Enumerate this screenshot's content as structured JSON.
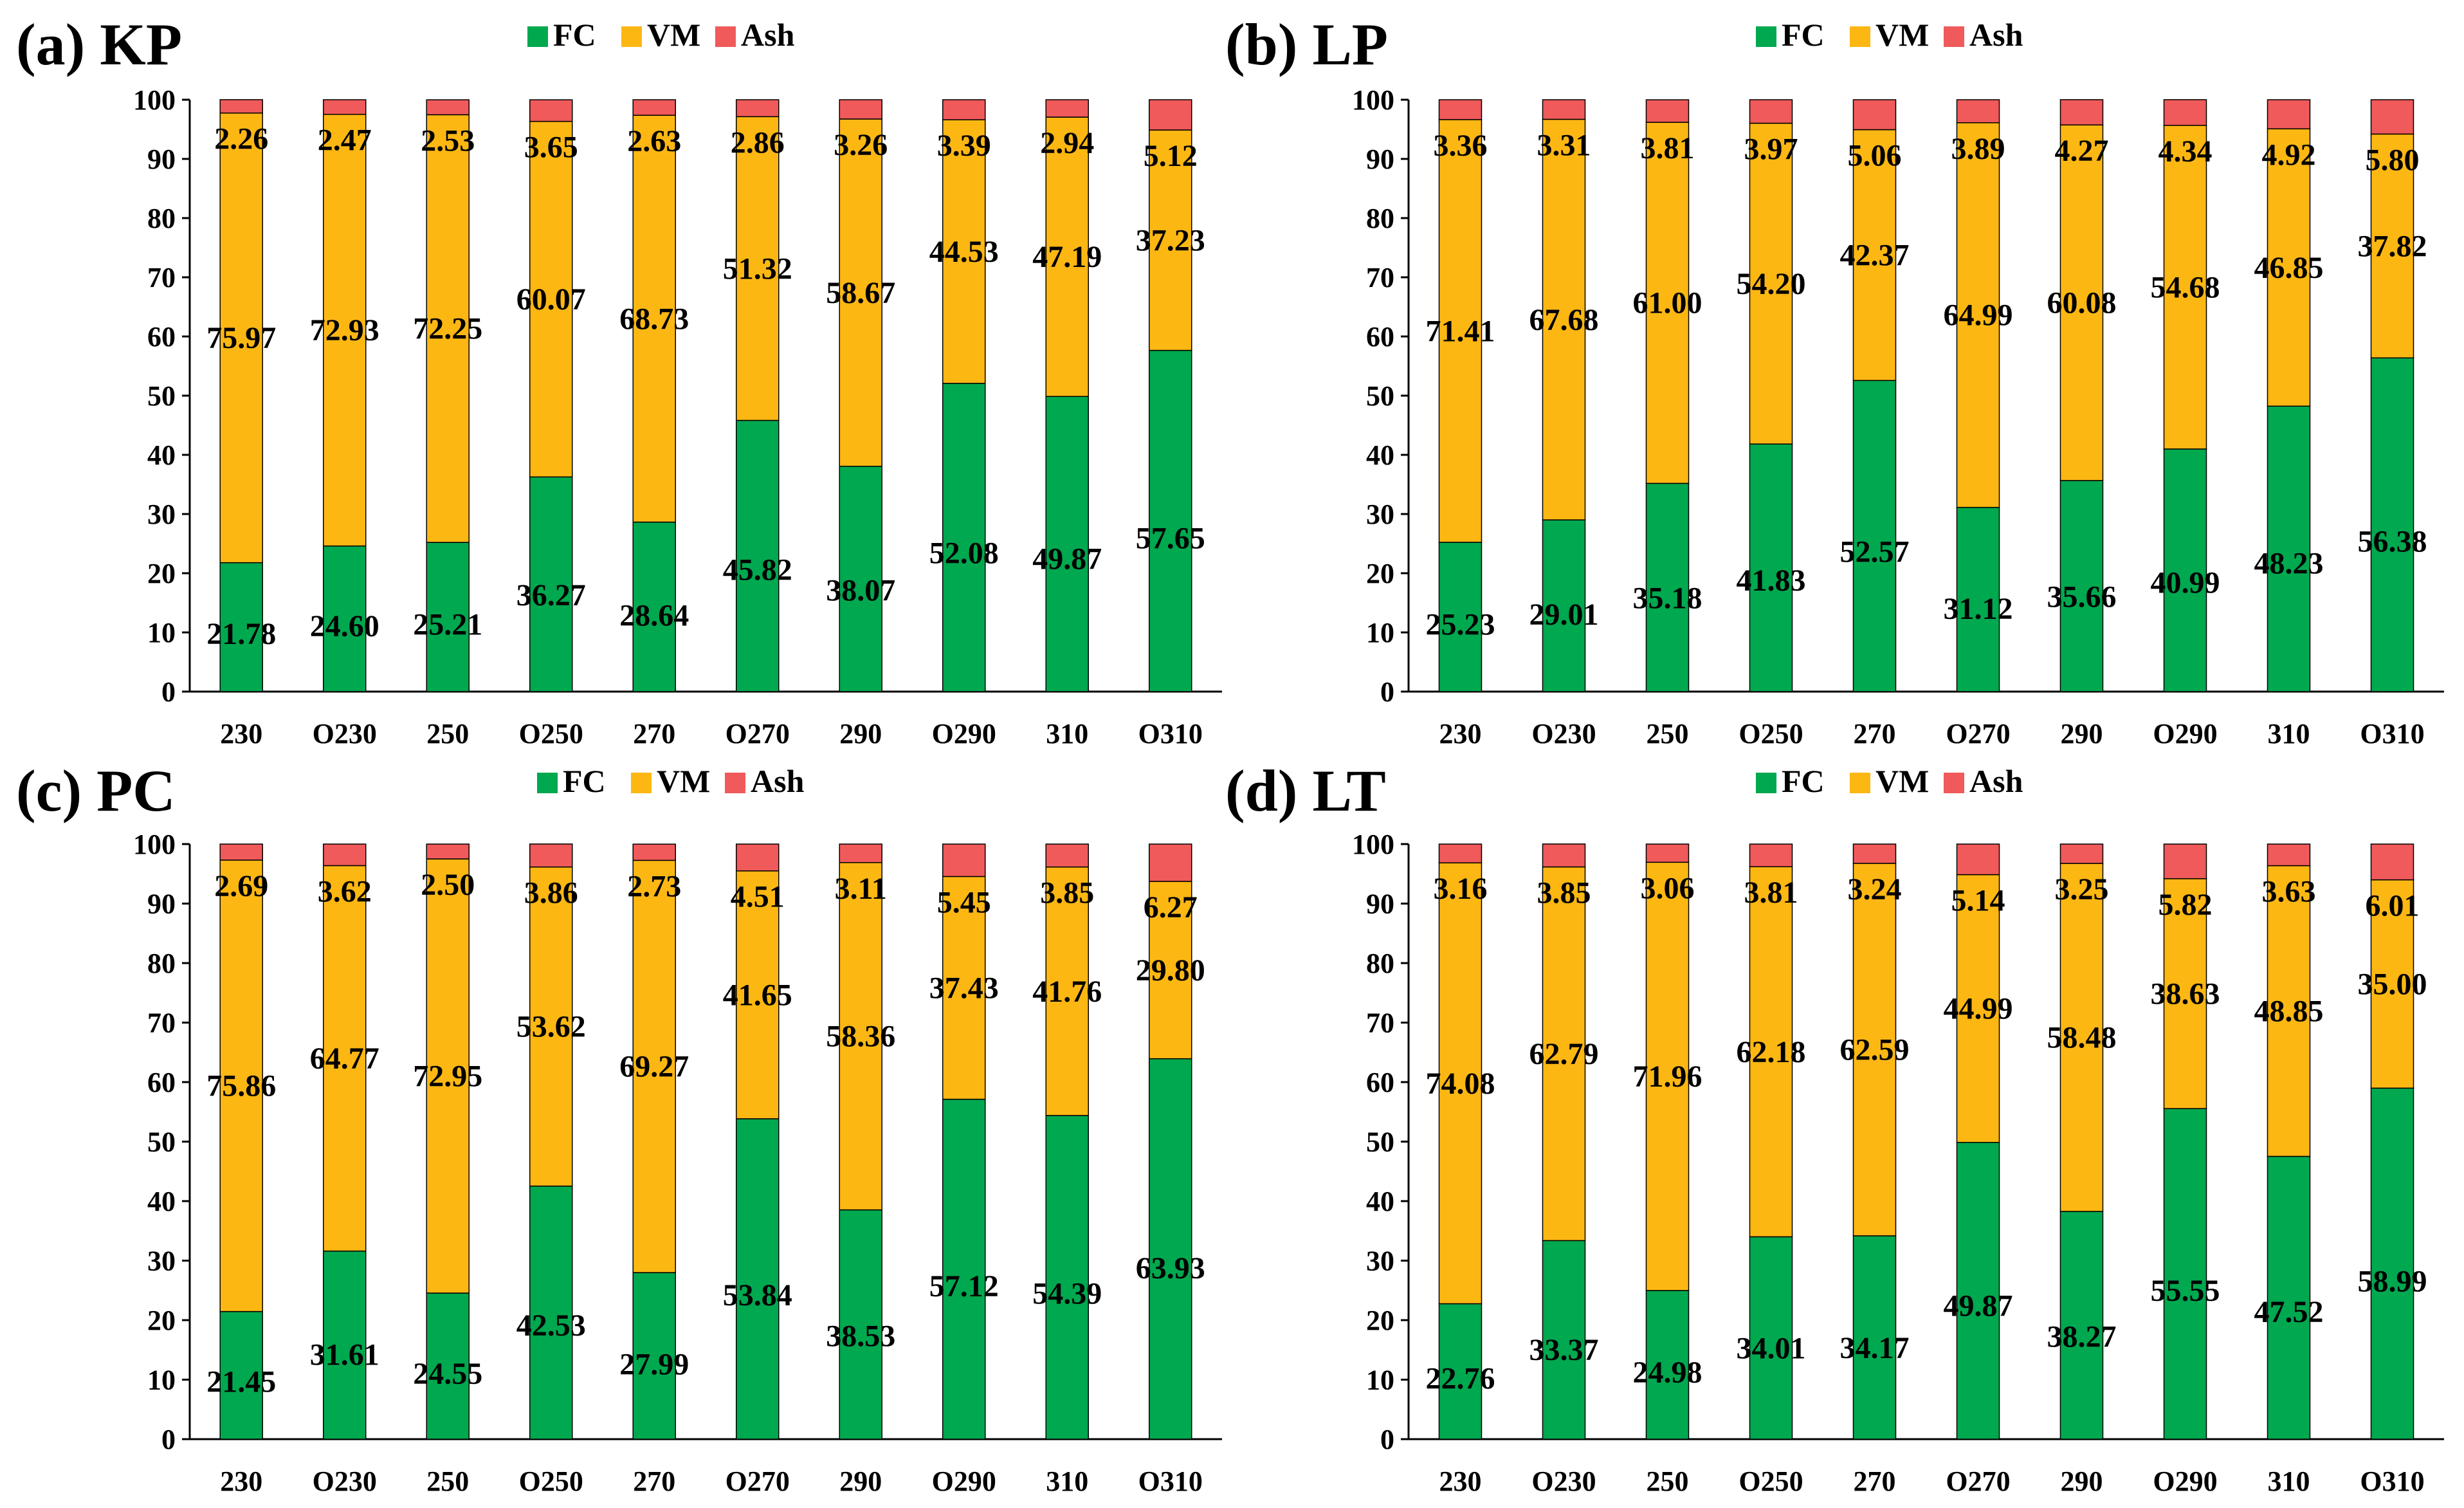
{
  "series_names": [
    "FC",
    "VM",
    "Ash"
  ],
  "colors": {
    "FC": "#00a84f",
    "VM": "#fdb713",
    "Ash": "#f05a5a"
  },
  "chart_data": [
    {
      "type": "bar",
      "stacked": true,
      "title": "(a) KP",
      "categories": [
        "230",
        "O230",
        "250",
        "O250",
        "270",
        "O270",
        "290",
        "O290",
        "310",
        "O310"
      ],
      "ylim": [
        0,
        100
      ],
      "yticks": [
        "0",
        "10",
        "20",
        "30",
        "40",
        "50",
        "60",
        "70",
        "80",
        "90",
        "100"
      ],
      "legend": "top-center",
      "series": [
        {
          "name": "FC",
          "values": [
            21.78,
            24.6,
            25.21,
            36.27,
            28.64,
            45.82,
            38.07,
            52.08,
            49.87,
            57.65
          ],
          "labels": [
            "21.78",
            "24.60",
            "25.21",
            "36.27",
            "28.64",
            "45.82",
            "38.07",
            "52.08",
            "49.87",
            "57.65"
          ]
        },
        {
          "name": "VM",
          "values": [
            75.97,
            72.93,
            72.25,
            60.07,
            68.73,
            51.32,
            58.67,
            44.53,
            47.19,
            37.23
          ],
          "labels": [
            "75.97",
            "72.93",
            "72.25",
            "60.07",
            "68.73",
            "51.32",
            "58.67",
            "44.53",
            "47.19",
            "37.23"
          ]
        },
        {
          "name": "Ash",
          "values": [
            2.26,
            2.47,
            2.53,
            3.65,
            2.63,
            2.86,
            3.26,
            3.39,
            2.94,
            5.12
          ],
          "labels": [
            "2.26",
            "2.47",
            "2.53",
            "3.65",
            "2.63",
            "2.86",
            "3.26",
            "3.39",
            "2.94",
            "5.12"
          ]
        }
      ]
    },
    {
      "type": "bar",
      "stacked": true,
      "title": "(b) LP",
      "categories": [
        "230",
        "O230",
        "250",
        "O250",
        "270",
        "O270",
        "290",
        "O290",
        "310",
        "O310"
      ],
      "ylim": [
        0,
        100
      ],
      "yticks": [
        "0",
        "10",
        "20",
        "30",
        "40",
        "50",
        "60",
        "70",
        "80",
        "90",
        "100"
      ],
      "legend": "top-center",
      "series": [
        {
          "name": "FC",
          "values": [
            25.23,
            29.01,
            35.18,
            41.83,
            52.57,
            31.12,
            35.66,
            40.99,
            48.23,
            56.38
          ],
          "labels": [
            "25.23",
            "29.01",
            "35.18",
            "41.83",
            "52.57",
            "31.12",
            "35.66",
            "40.99",
            "48.23",
            "56.38"
          ]
        },
        {
          "name": "VM",
          "values": [
            71.41,
            67.68,
            61.0,
            54.2,
            42.37,
            64.99,
            60.08,
            54.68,
            46.85,
            37.82
          ],
          "labels": [
            "71.41",
            "67.68",
            "61.00",
            "54.20",
            "42.37",
            "64.99",
            "60.08",
            "54.68",
            "46.85",
            "37.82"
          ]
        },
        {
          "name": "Ash",
          "values": [
            3.36,
            3.31,
            3.81,
            3.97,
            5.06,
            3.89,
            4.27,
            4.34,
            4.92,
            5.8
          ],
          "labels": [
            "3.36",
            "3.31",
            "3.81",
            "3.97",
            "5.06",
            "3.89",
            "4.27",
            "4.34",
            "4.92",
            "5.80"
          ]
        }
      ]
    },
    {
      "type": "bar",
      "stacked": true,
      "title": "(c) PC",
      "categories": [
        "230",
        "O230",
        "250",
        "O250",
        "270",
        "O270",
        "290",
        "O290",
        "310",
        "O310"
      ],
      "ylim": [
        0,
        100
      ],
      "yticks": [
        "0",
        "10",
        "20",
        "30",
        "40",
        "50",
        "60",
        "70",
        "80",
        "90",
        "100"
      ],
      "legend": "top-center",
      "series": [
        {
          "name": "FC",
          "values": [
            21.45,
            31.61,
            24.55,
            42.53,
            27.99,
            53.84,
            38.53,
            57.12,
            54.39,
            63.93
          ],
          "labels": [
            "21.45",
            "31.61",
            "24.55",
            "42.53",
            "27.99",
            "53.84",
            "38.53",
            "57.12",
            "54.39",
            "63.93"
          ]
        },
        {
          "name": "VM",
          "values": [
            75.86,
            64.77,
            72.95,
            53.62,
            69.27,
            41.65,
            58.36,
            37.43,
            41.76,
            29.8
          ],
          "labels": [
            "75.86",
            "64.77",
            "72.95",
            "53.62",
            "69.27",
            "41.65",
            "58.36",
            "37.43",
            "41.76",
            "29.80"
          ]
        },
        {
          "name": "Ash",
          "values": [
            2.69,
            3.62,
            2.5,
            3.86,
            2.73,
            4.51,
            3.11,
            5.45,
            3.85,
            6.27
          ],
          "labels": [
            "2.69",
            "3.62",
            "2.50",
            "3.86",
            "2.73",
            "4.51",
            "3.11",
            "5.45",
            "3.85",
            "6.27"
          ]
        }
      ]
    },
    {
      "type": "bar",
      "stacked": true,
      "title": "(d) LT",
      "categories": [
        "230",
        "O230",
        "250",
        "O250",
        "270",
        "O270",
        "290",
        "O290",
        "310",
        "O310"
      ],
      "ylim": [
        0,
        100
      ],
      "yticks": [
        "0",
        "10",
        "20",
        "30",
        "40",
        "50",
        "60",
        "70",
        "80",
        "90",
        "100"
      ],
      "legend": "top-center",
      "series": [
        {
          "name": "FC",
          "values": [
            22.76,
            33.37,
            24.98,
            34.01,
            34.17,
            49.87,
            38.27,
            55.55,
            47.52,
            58.99
          ],
          "labels": [
            "22.76",
            "33.37",
            "24.98",
            "34.01",
            "34.17",
            "49.87",
            "38.27",
            "55.55",
            "47.52",
            "58.99"
          ]
        },
        {
          "name": "VM",
          "values": [
            74.08,
            62.79,
            71.96,
            62.18,
            62.59,
            44.99,
            58.48,
            38.63,
            48.85,
            35.0
          ],
          "labels": [
            "74.08",
            "62.79",
            "71.96",
            "62.18",
            "62.59",
            "44.99",
            "58.48",
            "38.63",
            "48.85",
            "35.00"
          ]
        },
        {
          "name": "Ash",
          "values": [
            3.16,
            3.85,
            3.06,
            3.81,
            3.24,
            5.14,
            3.25,
            5.82,
            3.63,
            6.01
          ],
          "labels": [
            "3.16",
            "3.85",
            "3.06",
            "3.81",
            "3.24",
            "5.14",
            "3.25",
            "5.82",
            "3.63",
            "6.01"
          ]
        }
      ]
    }
  ]
}
